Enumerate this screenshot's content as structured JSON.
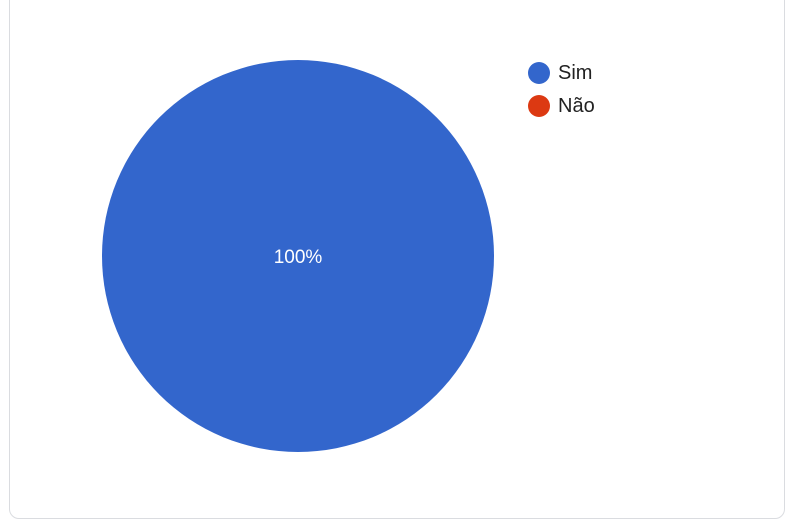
{
  "chart_data": {
    "type": "pie",
    "title": "",
    "slices": [
      {
        "label": "Sim",
        "value": 100,
        "color": "#3366cc",
        "data_label": "100%"
      },
      {
        "label": "Não",
        "value": 0,
        "color": "#dc3912",
        "data_label": ""
      }
    ],
    "legend_position": "top-right"
  }
}
